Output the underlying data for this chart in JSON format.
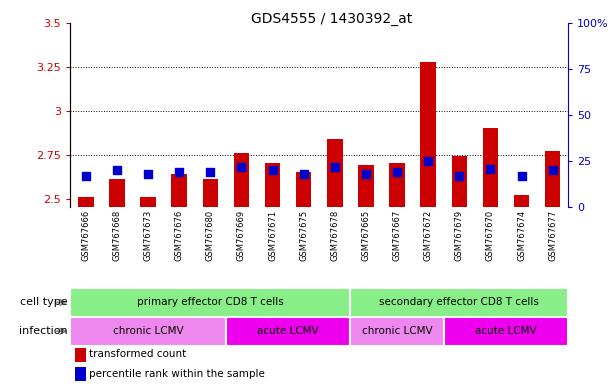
{
  "title": "GDS4555 / 1430392_at",
  "samples": [
    "GSM767666",
    "GSM767668",
    "GSM767673",
    "GSM767676",
    "GSM767680",
    "GSM767669",
    "GSM767671",
    "GSM767675",
    "GSM767678",
    "GSM767665",
    "GSM767667",
    "GSM767672",
    "GSM767679",
    "GSM767670",
    "GSM767674",
    "GSM767677"
  ],
  "transformed_count": [
    2.51,
    2.61,
    2.51,
    2.64,
    2.61,
    2.76,
    2.7,
    2.65,
    2.84,
    2.69,
    2.7,
    3.28,
    2.74,
    2.9,
    2.52,
    2.77
  ],
  "percentile_rank": [
    17,
    20,
    18,
    19,
    19,
    22,
    20,
    18,
    22,
    18,
    19,
    25,
    17,
    21,
    17,
    20
  ],
  "ylim_left": [
    2.45,
    3.5
  ],
  "ylim_right": [
    0,
    100
  ],
  "yticks_left": [
    2.5,
    2.75,
    3.0,
    3.25,
    3.5
  ],
  "yticks_right": [
    0,
    25,
    50,
    75,
    100
  ],
  "ytick_labels_left": [
    "2.5",
    "2.75",
    "3",
    "3.25",
    "3.5"
  ],
  "ytick_labels_right": [
    "0",
    "25",
    "50",
    "75",
    "100%"
  ],
  "hlines": [
    2.75,
    3.0,
    3.25
  ],
  "bar_color": "#cc0000",
  "dot_color": "#0000cc",
  "bar_width": 0.5,
  "dot_size": 28,
  "background_color": "#c8c8c8",
  "plot_bg": "#ffffff",
  "cell_type_color": "#88ee88",
  "cell_type_groups": [
    {
      "label": "primary effector CD8 T cells",
      "start": 0,
      "end": 9
    },
    {
      "label": "secondary effector CD8 T cells",
      "start": 9,
      "end": 16
    }
  ],
  "infection_groups": [
    {
      "label": "chronic LCMV",
      "start": 0,
      "end": 5,
      "color": "#ee88ee"
    },
    {
      "label": "acute LCMV",
      "start": 5,
      "end": 9,
      "color": "#ee00ee"
    },
    {
      "label": "chronic LCMV",
      "start": 9,
      "end": 12,
      "color": "#ee88ee"
    },
    {
      "label": "acute LCMV",
      "start": 12,
      "end": 16,
      "color": "#ee00ee"
    }
  ],
  "legend_items": [
    {
      "color": "#cc0000",
      "label": "transformed count"
    },
    {
      "color": "#0000cc",
      "label": "percentile rank within the sample"
    }
  ],
  "left_axis_color": "#cc0000",
  "right_axis_color": "#0000cc"
}
